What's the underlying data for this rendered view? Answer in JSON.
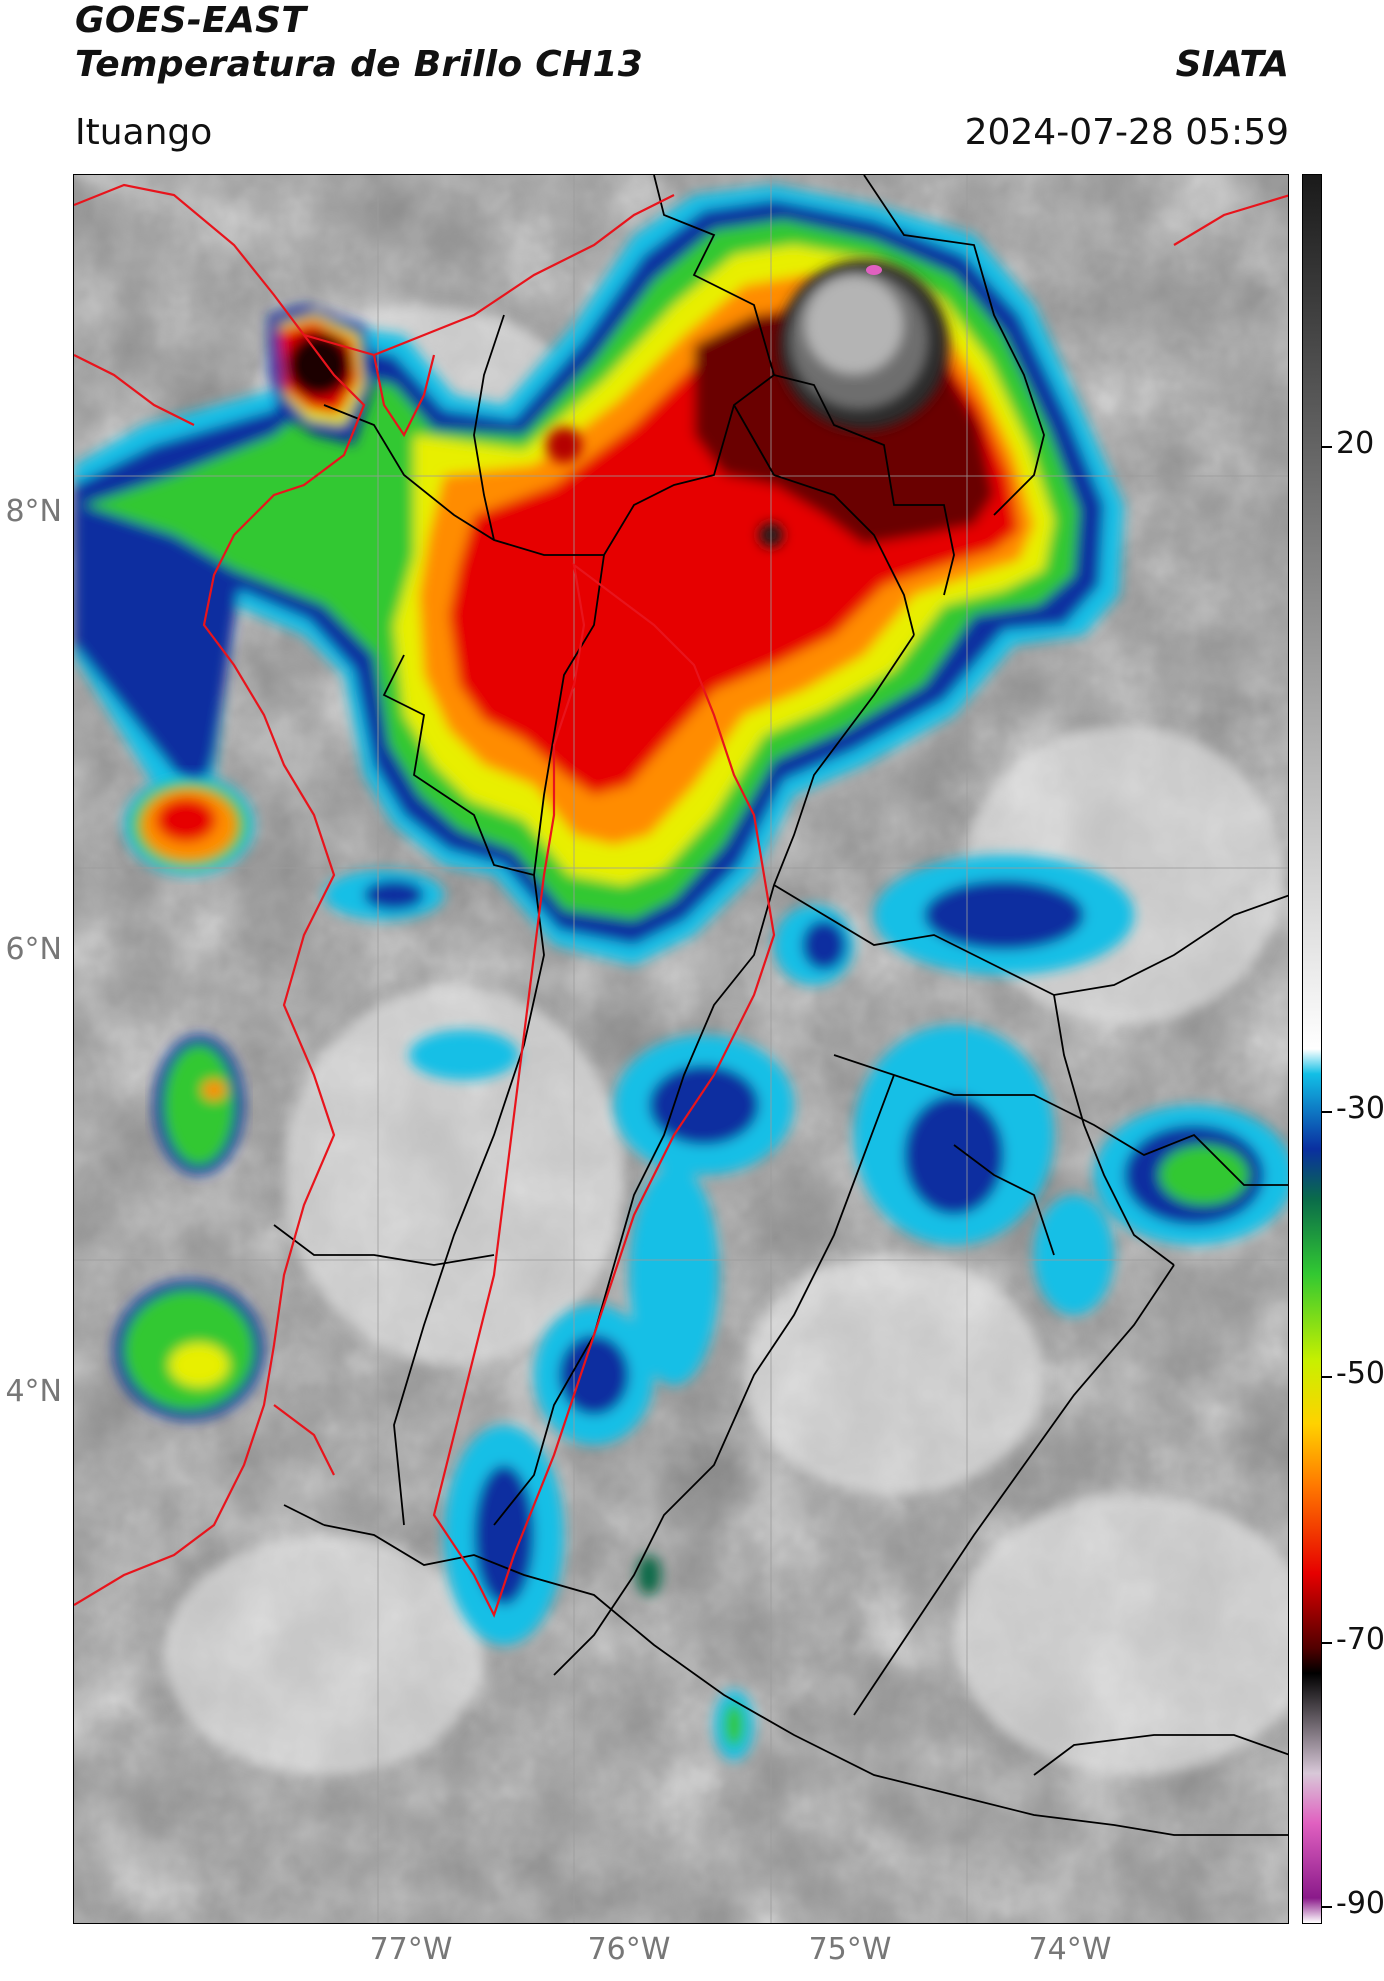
{
  "header": {
    "title_line1": "GOES-EAST",
    "title_line2": "Temperatura de Brillo CH13",
    "organization": "SIATA",
    "station": "Ituango",
    "datetime": "2024-07-28 05:59"
  },
  "map": {
    "latitude_labels": [
      "8°N",
      "6°N",
      "4°N"
    ],
    "longitude_labels": [
      "77°W",
      "76°W",
      "75°W",
      "74°W"
    ],
    "gridlines": true,
    "boundary_colors": {
      "country_coast": "#e8141c",
      "departments": "#000000"
    }
  },
  "colorbar": {
    "tick_labels": [
      "20",
      "-30",
      "-50",
      "-70",
      "-90"
    ],
    "units": "",
    "scale_stops": [
      {
        "value": 50,
        "color": "#1a1a1a"
      },
      {
        "value": 20,
        "color": "#808080"
      },
      {
        "value": -20,
        "color": "#ffffff"
      },
      {
        "value": -22,
        "color": "#12bfe6"
      },
      {
        "value": -28,
        "color": "#0a2fa0"
      },
      {
        "value": -32,
        "color": "#0a6b4a"
      },
      {
        "value": -38,
        "color": "#32c832"
      },
      {
        "value": -45,
        "color": "#c8f000"
      },
      {
        "value": -50,
        "color": "#ffd200"
      },
      {
        "value": -55,
        "color": "#ff7800"
      },
      {
        "value": -62,
        "color": "#e60000"
      },
      {
        "value": -68,
        "color": "#500000"
      },
      {
        "value": -70,
        "color": "#000000"
      },
      {
        "value": -78,
        "color": "#d8c8d8"
      },
      {
        "value": -82,
        "color": "#e060c0"
      },
      {
        "value": -88,
        "color": "#8a1a8a"
      },
      {
        "value": -90,
        "color": "#ffffff"
      }
    ]
  }
}
